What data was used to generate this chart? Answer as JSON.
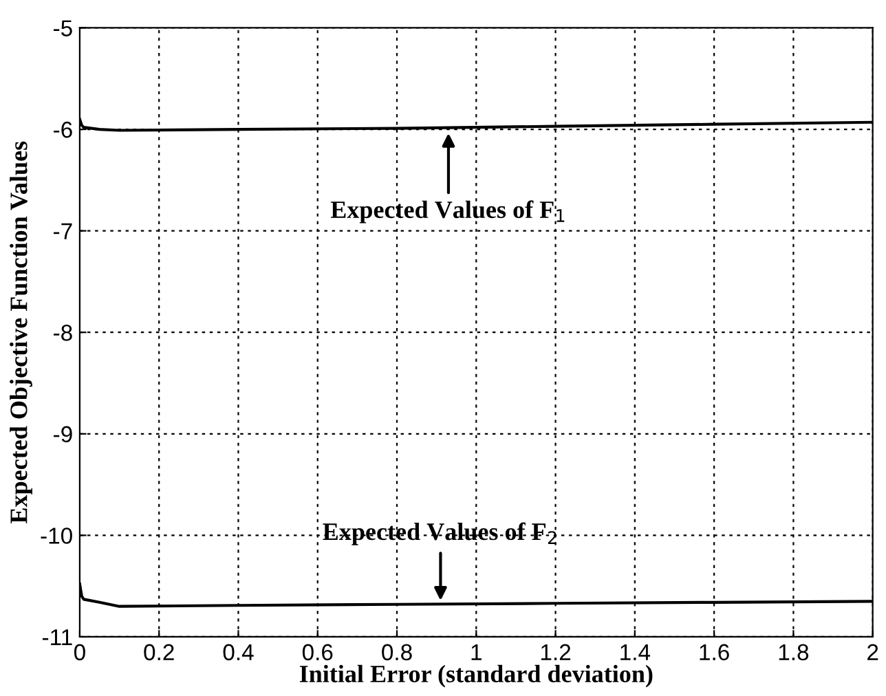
{
  "chart_data": {
    "type": "line",
    "xlabel": "Initial Error (standard deviation)",
    "ylabel": "Expected Objective Function Values",
    "series": [
      {
        "x": [
          0,
          0.005,
          0.01,
          0.05,
          0.1,
          0.4,
          0.8,
          1.2,
          1.6,
          2
        ],
        "values": [
          -5.9,
          -5.96,
          -5.98,
          -6.0,
          -6.01,
          -6.0,
          -5.99,
          -5.97,
          -5.95,
          -5.93
        ],
        "color": "#000000"
      },
      {
        "x": [
          0,
          0.005,
          0.01,
          0.05,
          0.1,
          0.4,
          0.8,
          1.2,
          1.6,
          2
        ],
        "values": [
          -10.48,
          -10.6,
          -10.63,
          -10.66,
          -10.7,
          -10.69,
          -10.68,
          -10.67,
          -10.66,
          -10.65
        ],
        "color": "#000000"
      }
    ],
    "annotations": [
      {
        "text": "Expected Values of F$_{1}$",
        "x": 0.93,
        "y": -6.0
      },
      {
        "text": "Expected Values of F$_{2}$",
        "x": 0.91,
        "y": -10.68
      }
    ],
    "xlim": [
      0,
      2
    ],
    "ylim": [
      -11,
      -5
    ],
    "xticks": [
      0,
      0.2,
      0.4,
      0.6,
      0.8,
      1,
      1.2,
      1.4,
      1.6,
      1.8,
      2
    ],
    "yticks": [
      -11,
      -10,
      -9,
      -8,
      -7,
      -6,
      -5
    ],
    "grid": true,
    "marker": "none",
    "line_style": "solid"
  }
}
